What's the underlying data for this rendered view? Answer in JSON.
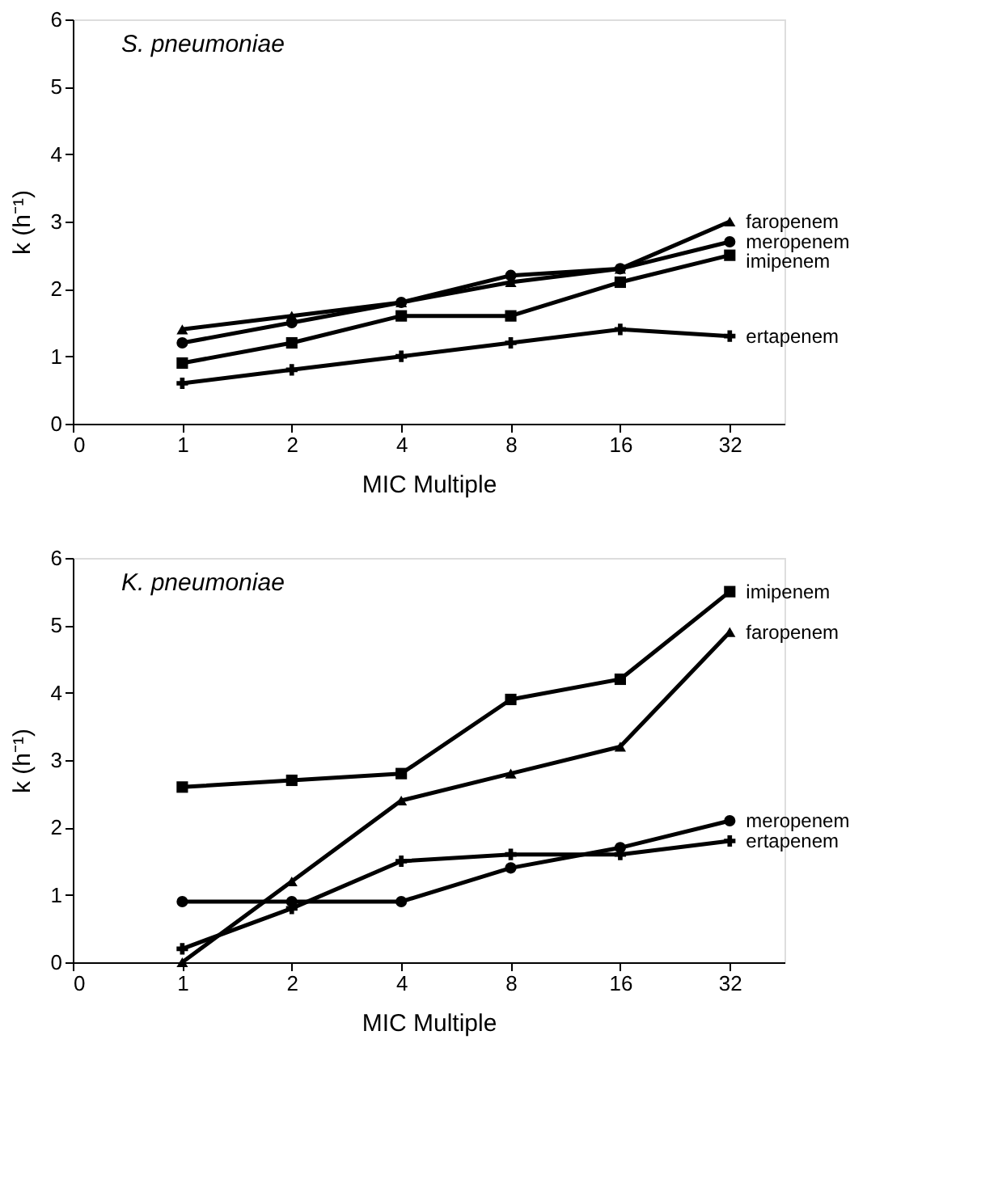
{
  "chart_data": [
    {
      "type": "line",
      "title": "S. pneumoniae",
      "xlabel": "MIC Multiple",
      "ylabel": "k (h⁻¹)",
      "categories": [
        "0",
        "1",
        "2",
        "4",
        "8",
        "16",
        "32"
      ],
      "ylim": [
        0,
        6
      ],
      "yticks": [
        0,
        1,
        2,
        3,
        4,
        5,
        6
      ],
      "grid": false,
      "series": [
        {
          "name": "faropenem",
          "color": "#000000",
          "marker": "triangle",
          "values": [
            null,
            1.4,
            1.6,
            1.8,
            2.1,
            2.3,
            3.0
          ]
        },
        {
          "name": "meropenem",
          "color": "#000000",
          "marker": "circle",
          "values": [
            null,
            1.2,
            1.5,
            1.8,
            2.2,
            2.3,
            2.7
          ]
        },
        {
          "name": "imipenem",
          "color": "#000000",
          "marker": "square",
          "values": [
            null,
            0.9,
            1.2,
            1.6,
            1.6,
            2.1,
            2.5
          ]
        },
        {
          "name": "ertapenem",
          "color": "#000000",
          "marker": "cross",
          "values": [
            null,
            0.6,
            0.8,
            1.0,
            1.2,
            1.4,
            1.3
          ]
        }
      ]
    },
    {
      "type": "line",
      "title": "K. pneumoniae",
      "xlabel": "MIC Multiple",
      "ylabel": "k (h⁻¹)",
      "categories": [
        "0",
        "1",
        "2",
        "4",
        "8",
        "16",
        "32"
      ],
      "ylim": [
        0,
        6
      ],
      "yticks": [
        0,
        1,
        2,
        3,
        4,
        5,
        6
      ],
      "grid": false,
      "series": [
        {
          "name": "imipenem",
          "color": "#000000",
          "marker": "square",
          "values": [
            null,
            2.6,
            2.7,
            2.8,
            3.9,
            4.2,
            5.5
          ]
        },
        {
          "name": "faropenem",
          "color": "#000000",
          "marker": "triangle",
          "values": [
            null,
            0.0,
            1.2,
            2.4,
            2.8,
            3.2,
            4.9
          ]
        },
        {
          "name": "meropenem",
          "color": "#000000",
          "marker": "circle",
          "values": [
            null,
            0.9,
            0.9,
            0.9,
            1.4,
            1.7,
            2.1
          ]
        },
        {
          "name": "ertapenem",
          "color": "#000000",
          "marker": "cross",
          "values": [
            null,
            0.2,
            0.8,
            1.5,
            1.6,
            1.6,
            1.8
          ]
        }
      ]
    }
  ]
}
